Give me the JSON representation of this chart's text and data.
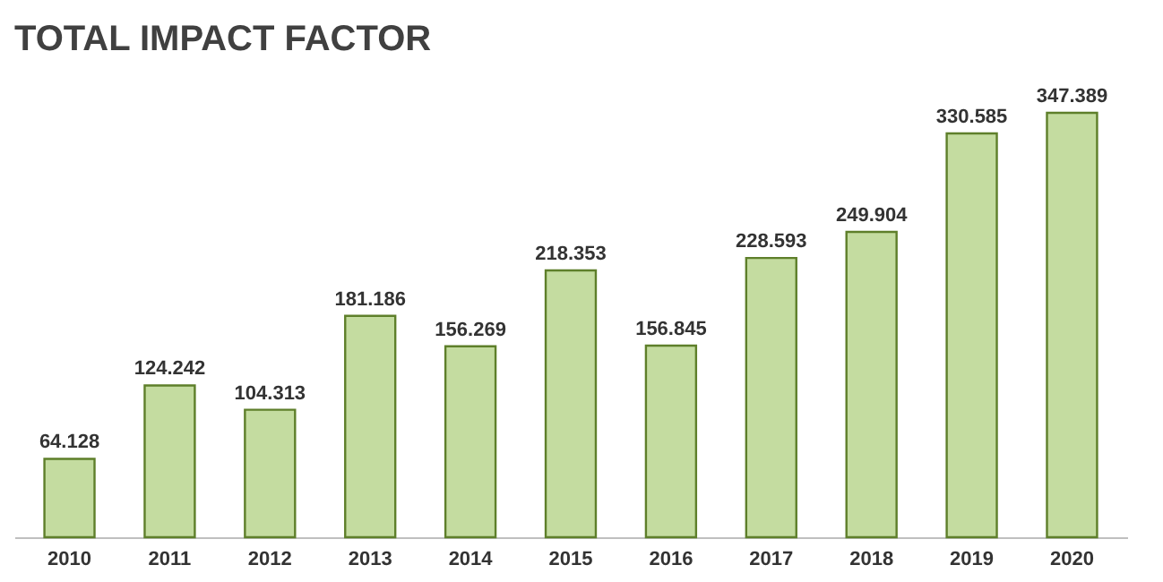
{
  "chart_data": {
    "type": "bar",
    "title": "TOTAL IMPACT FACTOR",
    "categories": [
      "2010",
      "2011",
      "2012",
      "2013",
      "2014",
      "2015",
      "2016",
      "2017",
      "2018",
      "2019",
      "2020"
    ],
    "values": [
      64.128,
      124.242,
      104.313,
      181.186,
      156.269,
      218.353,
      156.845,
      228.593,
      249.904,
      330.585,
      347.389
    ],
    "color": "#c4dca0",
    "data_labels": true
  }
}
